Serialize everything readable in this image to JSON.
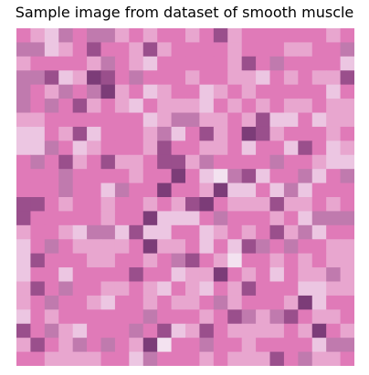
{
  "figure": {
    "title": "Sample image from dataset of smooth muscle"
  },
  "image": {
    "subject": "pixelated H&E-stained smooth muscle tissue patch",
    "grid_cells": 24,
    "palette": {
      "base_pink": "#e07ab8",
      "light_pink": "#e8a6cf",
      "pale_lavender": "#ecc6e2",
      "mauve": "#c07aae",
      "purple": "#9a4f8c",
      "dark_purple": "#7c3c78",
      "highlight": "#f3e2f0"
    }
  }
}
